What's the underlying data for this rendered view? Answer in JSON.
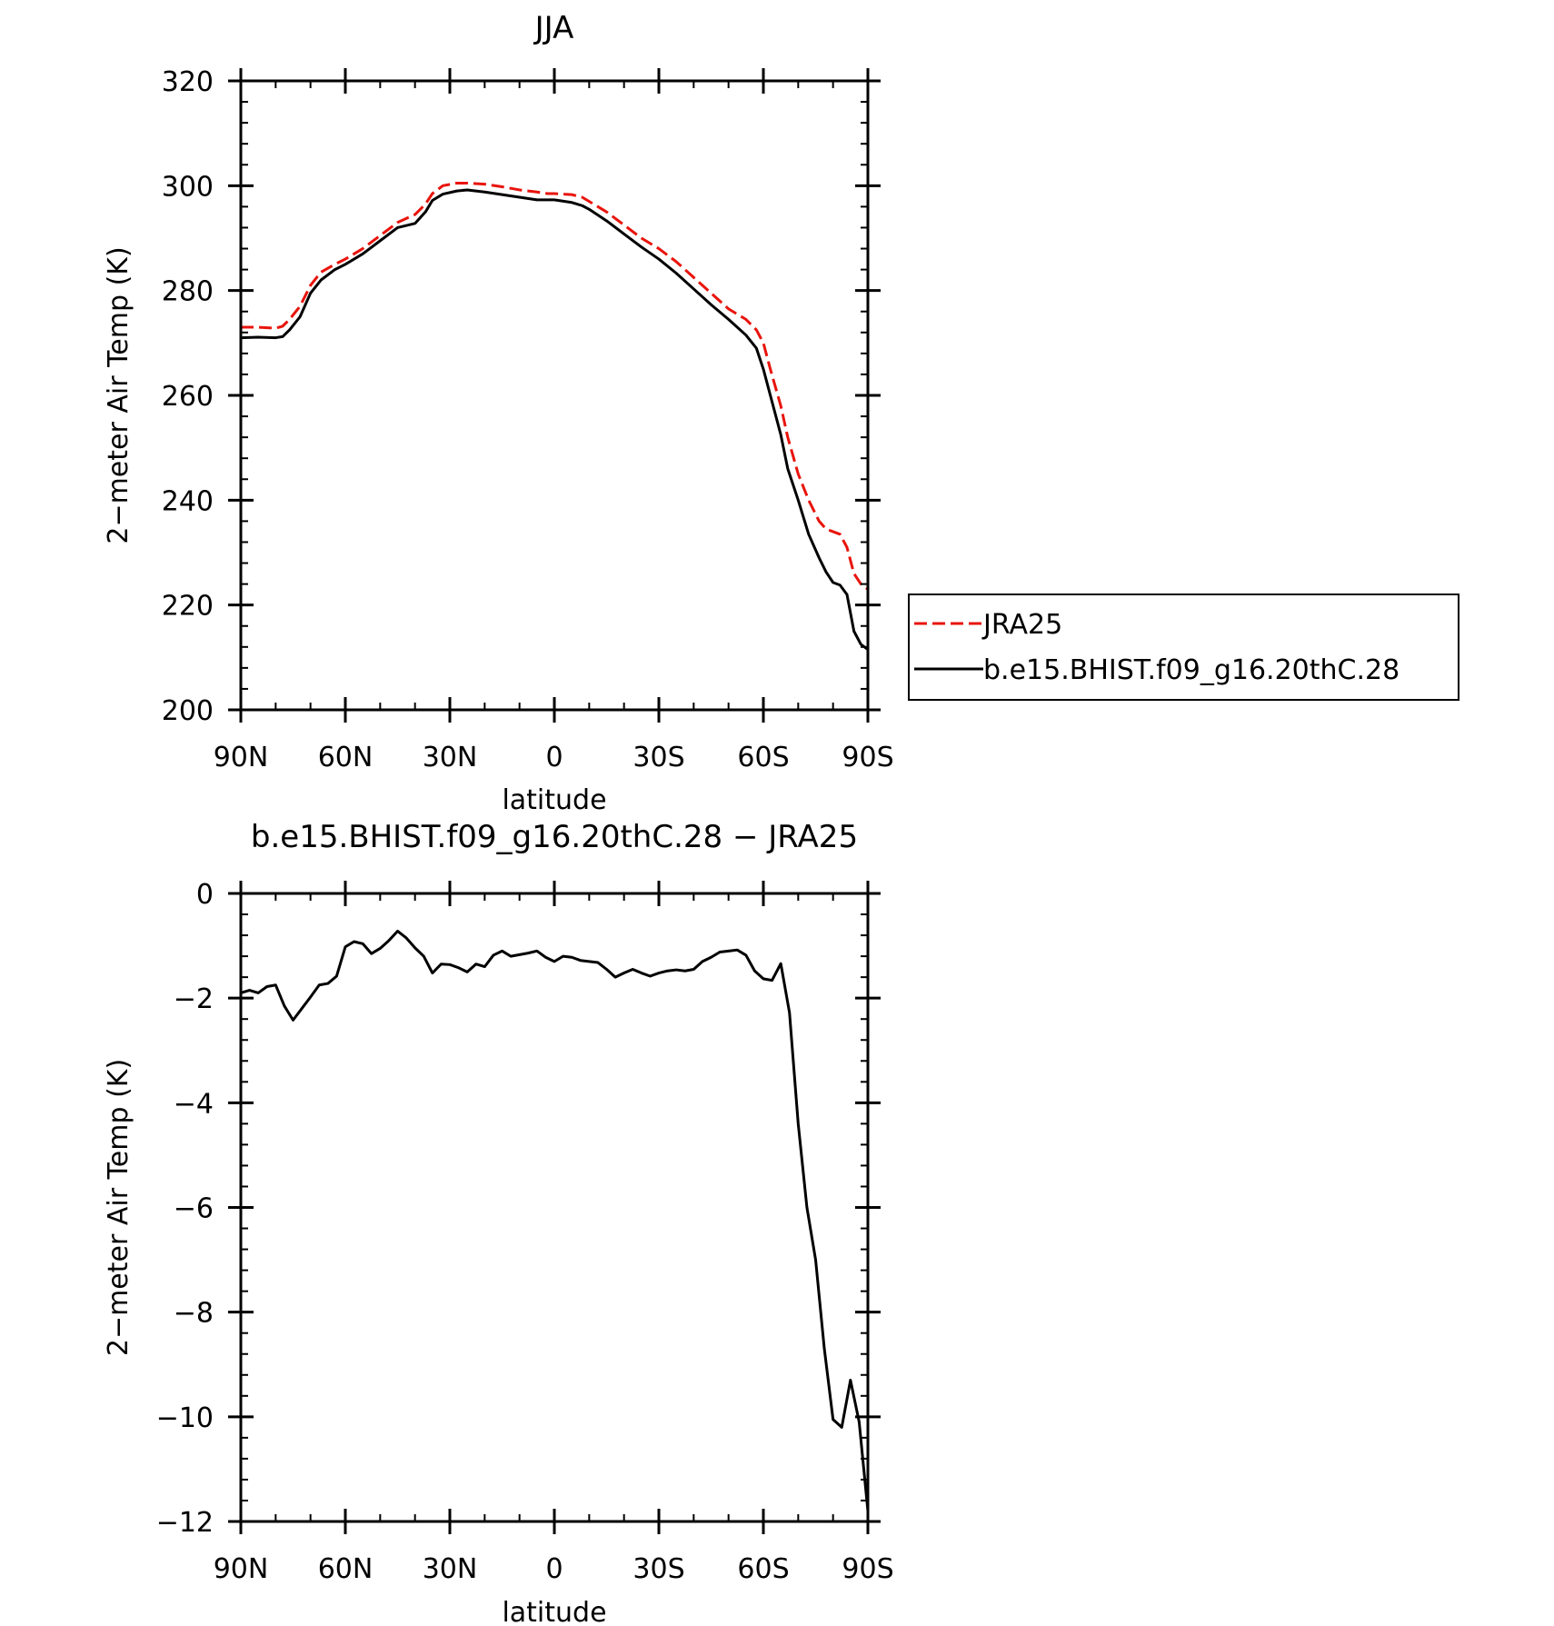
{
  "chart_data": [
    {
      "type": "line",
      "title": "JJA",
      "xlabel": "latitude",
      "ylabel": "2−meter Air Temp (K)",
      "xlim": [
        90,
        -90
      ],
      "ylim": [
        200,
        320
      ],
      "x_ticks": [
        90,
        60,
        30,
        0,
        -30,
        -60,
        -90
      ],
      "x_tick_labels": [
        "90N",
        "60N",
        "30N",
        "0",
        "30S",
        "60S",
        "90S"
      ],
      "y_ticks": [
        200,
        220,
        240,
        260,
        280,
        300,
        320
      ],
      "y_tick_labels": [
        "200",
        "220",
        "240",
        "260",
        "280",
        "300",
        "320"
      ],
      "grid": false,
      "legend_position": "right",
      "series": [
        {
          "name": "JRA25",
          "color": "#e8140c",
          "dash": "dashed",
          "x": [
            90,
            85,
            80,
            78,
            76,
            73,
            70,
            67,
            63,
            60,
            55,
            50,
            45,
            40,
            37,
            35,
            32,
            28,
            25,
            20,
            15,
            10,
            5,
            2,
            0,
            -5,
            -8,
            -10,
            -15,
            -20,
            -25,
            -30,
            -35,
            -40,
            -45,
            -50,
            -55,
            -58,
            -60,
            -62,
            -65,
            -67,
            -70,
            -73,
            -76,
            -78,
            -80,
            -82,
            -84,
            -86,
            -88,
            -90
          ],
          "y": [
            273,
            273,
            272.8,
            273.2,
            274.5,
            277,
            281,
            283.5,
            285,
            286,
            288,
            290.5,
            293,
            294.5,
            296.5,
            298.5,
            300,
            300.5,
            300.5,
            300.3,
            299.8,
            299.2,
            298.8,
            298.5,
            298.5,
            298.3,
            297.8,
            297,
            295,
            292.5,
            290,
            288,
            285.5,
            282.5,
            279.5,
            276.5,
            274.5,
            272.5,
            270,
            265,
            258,
            252,
            245,
            240,
            236,
            234.5,
            234,
            233.5,
            231,
            226,
            224,
            223
          ]
        },
        {
          "name": "b.e15.BHIST.f09_g16.20thC.28",
          "color": "#000000",
          "dash": "solid",
          "x": [
            90,
            85,
            80,
            78,
            76,
            73,
            70,
            67,
            63,
            60,
            55,
            50,
            45,
            40,
            37,
            35,
            32,
            28,
            25,
            20,
            15,
            10,
            5,
            2,
            0,
            -5,
            -8,
            -10,
            -15,
            -20,
            -25,
            -30,
            -35,
            -40,
            -45,
            -50,
            -55,
            -58,
            -60,
            -62,
            -65,
            -67,
            -70,
            -73,
            -76,
            -78,
            -80,
            -82,
            -84,
            -86,
            -88,
            -90
          ],
          "y": [
            271,
            271.1,
            271,
            271.2,
            272.5,
            275,
            279.5,
            282,
            284,
            285,
            287,
            289.5,
            292,
            292.8,
            295,
            297.2,
            298.4,
            299,
            299.2,
            298.8,
            298.3,
            297.8,
            297.3,
            297.3,
            297.3,
            296.8,
            296.2,
            295.5,
            293.3,
            290.8,
            288.3,
            286,
            283.3,
            280.3,
            277.3,
            274.5,
            271.5,
            269,
            265,
            260,
            252.5,
            246,
            240,
            233.5,
            229,
            226.3,
            224.3,
            223.8,
            222,
            215,
            212.5,
            211.5
          ]
        }
      ]
    },
    {
      "type": "line",
      "title": "b.e15.BHIST.f09_g16.20thC.28 − JRA25",
      "xlabel": "latitude",
      "ylabel": "2−meter Air Temp (K)",
      "xlim": [
        90,
        -90
      ],
      "ylim": [
        -12,
        0
      ],
      "x_ticks": [
        90,
        60,
        30,
        0,
        -30,
        -60,
        -90
      ],
      "x_tick_labels": [
        "90N",
        "60N",
        "30N",
        "0",
        "30S",
        "60S",
        "90S"
      ],
      "y_ticks": [
        0,
        -2,
        -4,
        -6,
        -8,
        -10,
        -12
      ],
      "y_tick_labels": [
        "0",
        "−2",
        "−4",
        "−6",
        "−8",
        "−10",
        "−12"
      ],
      "grid": false,
      "series": [
        {
          "color": "#000000",
          "dash": "solid",
          "x": [
            90,
            87.5,
            85,
            82.5,
            80,
            77.5,
            75,
            72.5,
            70,
            67.5,
            65,
            62.5,
            60,
            57.5,
            55,
            52.5,
            50,
            47.5,
            45,
            42.5,
            40,
            37.5,
            35,
            32.5,
            30,
            27.5,
            25,
            22.5,
            20,
            17.5,
            15,
            12.5,
            10,
            7.5,
            5,
            2.5,
            0,
            -2.5,
            -5,
            -7.5,
            -10,
            -12.5,
            -15,
            -17.5,
            -20,
            -22.5,
            -25,
            -27.5,
            -30,
            -32.5,
            -35,
            -37.5,
            -40,
            -42.5,
            -45,
            -47.5,
            -50,
            -52.5,
            -55,
            -57.5,
            -60,
            -62.5,
            -65,
            -67.5,
            -70,
            -72.5,
            -75,
            -77.5,
            -80,
            -82.5,
            -85,
            -87.5,
            -90
          ],
          "y": [
            -1.9,
            -1.85,
            -1.9,
            -1.78,
            -1.75,
            -2.15,
            -2.42,
            -2.2,
            -1.98,
            -1.75,
            -1.72,
            -1.58,
            -1.02,
            -0.92,
            -0.96,
            -1.15,
            -1.05,
            -0.9,
            -0.72,
            -0.85,
            -1.04,
            -1.2,
            -1.52,
            -1.35,
            -1.36,
            -1.42,
            -1.5,
            -1.35,
            -1.4,
            -1.18,
            -1.1,
            -1.2,
            -1.17,
            -1.14,
            -1.1,
            -1.22,
            -1.3,
            -1.2,
            -1.22,
            -1.28,
            -1.3,
            -1.32,
            -1.45,
            -1.6,
            -1.52,
            -1.45,
            -1.52,
            -1.58,
            -1.52,
            -1.48,
            -1.46,
            -1.48,
            -1.45,
            -1.3,
            -1.22,
            -1.12,
            -1.1,
            -1.08,
            -1.18,
            -1.48,
            -1.63,
            -1.66,
            -1.34,
            -2.28,
            -4.4,
            -6.0,
            -7.0,
            -8.7,
            -10.05,
            -10.2,
            -9.3,
            -10.1,
            -11.8
          ]
        }
      ]
    }
  ]
}
